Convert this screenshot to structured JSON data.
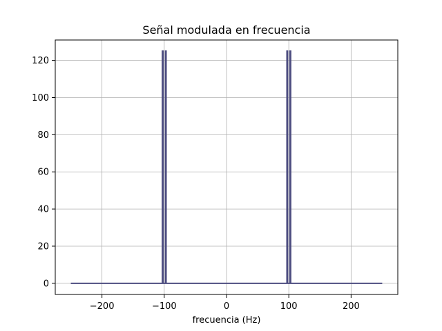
{
  "chart_data": {
    "type": "line",
    "title": "Señal modulada en frecuencia",
    "xlabel": "frecuencia (Hz)",
    "ylabel": "",
    "xlim": [
      -275,
      275
    ],
    "ylim": [
      -6,
      131
    ],
    "xticks": [
      -200,
      -100,
      0,
      100,
      200
    ],
    "yticks": [
      0,
      20,
      40,
      60,
      80,
      100,
      120
    ],
    "xtick_labels": [
      "−200",
      "−100",
      "0",
      "100",
      "200"
    ],
    "ytick_labels": [
      "0",
      "20",
      "40",
      "60",
      "80",
      "100",
      "120"
    ],
    "grid": true,
    "series": [
      {
        "color": "#4c4c80",
        "x": [
          -250,
          -103,
          -103,
          -102,
          -102,
          -98,
          -98,
          -97,
          -97,
          97,
          97,
          98,
          98,
          102,
          102,
          103,
          103,
          250
        ],
        "y": [
          0,
          0,
          125,
          125,
          0,
          0,
          125,
          125,
          0,
          0,
          125,
          125,
          0,
          0,
          125,
          125,
          0,
          0
        ]
      }
    ]
  }
}
